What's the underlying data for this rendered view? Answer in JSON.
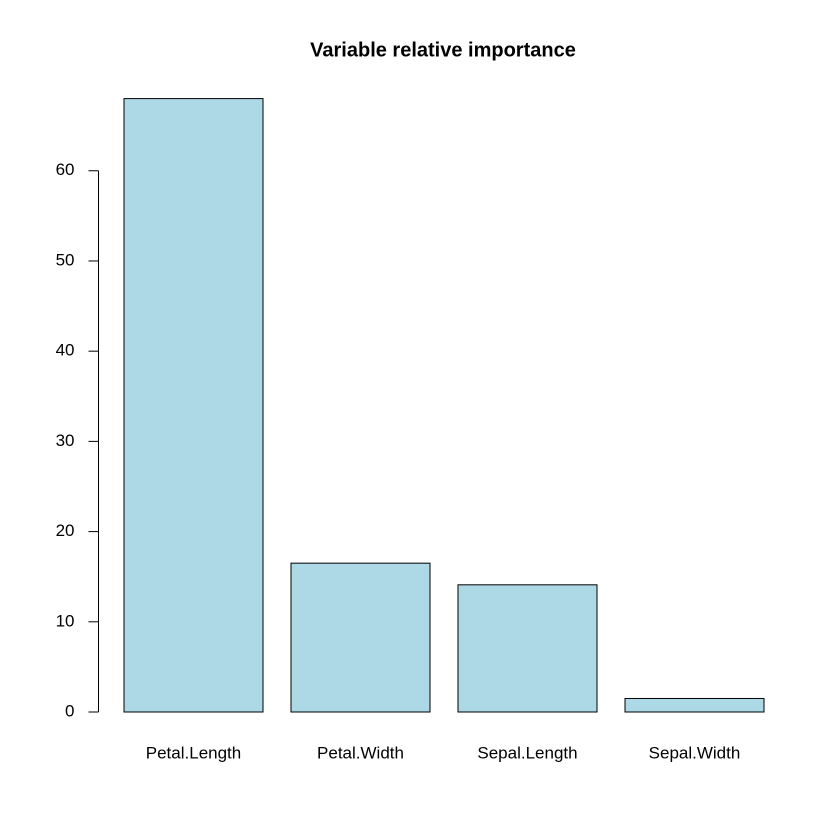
{
  "chart_data": {
    "type": "bar",
    "title": "Variable relative importance",
    "categories": [
      "Petal.Length",
      "Petal.Width",
      "Sepal.Length",
      "Sepal.Width"
    ],
    "values": [
      68,
      16.5,
      14.1,
      1.5
    ],
    "color": "#add8e6",
    "ylim": [
      0,
      68
    ],
    "yticks": [
      0,
      10,
      20,
      30,
      40,
      50,
      60
    ]
  }
}
